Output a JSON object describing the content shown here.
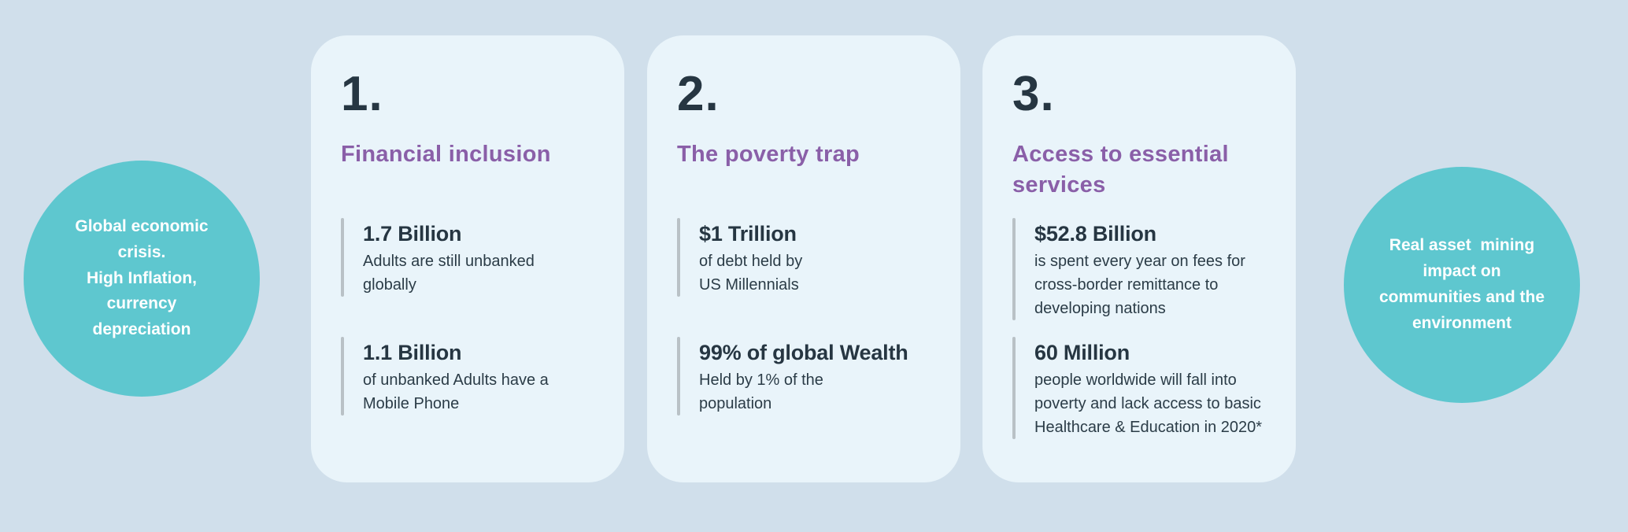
{
  "colors": {
    "background": "#d0dfeb",
    "card_background": "#e9f4fa",
    "circle_teal": "#5ec7cf",
    "heading_purple": "#8a5fa8",
    "text_dark": "#263642",
    "divider_gray": "#b9c1c6",
    "circle_text": "#ffffff"
  },
  "left_circle": {
    "text": "Global economic\ncrisis.\nHigh Inflation,\ncurrency\ndepreciation"
  },
  "right_circle": {
    "text": "Real asset  mining\nimpact on\ncommunities and the\nenvironment"
  },
  "cards": [
    {
      "number": "1.",
      "title": "Financial inclusion",
      "stats": [
        {
          "value": "1.7 Billion",
          "description": "Adults are still unbanked\nglobally"
        },
        {
          "value": "1.1 Billion",
          "description": "of unbanked Adults have a\nMobile Phone"
        }
      ]
    },
    {
      "number": "2.",
      "title": "The poverty trap",
      "stats": [
        {
          "value": "$1 Trillion",
          "description": "of debt held by\nUS Millennials"
        },
        {
          "value": "99% of global Wealth",
          "description": "Held by 1% of the\npopulation"
        }
      ]
    },
    {
      "number": "3.",
      "title": "Access to essential\nservices",
      "stats": [
        {
          "value": "$52.8 Billion",
          "description": "is spent every year on fees for\ncross-border remittance to\ndeveloping nations"
        },
        {
          "value": "60 Million",
          "description": "people worldwide will fall into\npoverty and lack access to basic\nHealthcare & Education in 2020*"
        }
      ]
    }
  ]
}
